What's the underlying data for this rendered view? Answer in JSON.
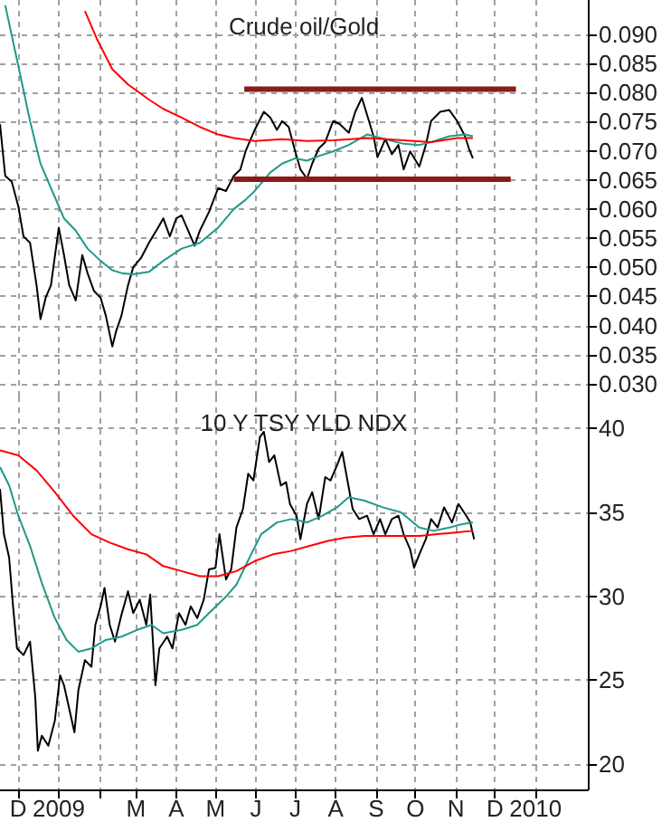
{
  "chart_data": [
    {
      "type": "line",
      "title": "Crude oil/Gold",
      "grid": true,
      "tick_labels": "y",
      "xlim": [
        "2008-11-17",
        "2010-02-10"
      ],
      "xticks": [
        {
          "value": "2008-12-01",
          "label": null
        },
        {
          "value": "2009-01-01",
          "label": null
        },
        {
          "value": "2009-02-01",
          "label": null
        },
        {
          "value": "2009-03-01",
          "label": null
        },
        {
          "value": "2009-04-01",
          "label": null
        },
        {
          "value": "2009-05-01",
          "label": null
        },
        {
          "value": "2009-06-01",
          "label": null
        },
        {
          "value": "2009-07-01",
          "label": null
        },
        {
          "value": "2009-08-01",
          "label": null
        },
        {
          "value": "2009-09-01",
          "label": null
        },
        {
          "value": "2009-10-01",
          "label": null
        },
        {
          "value": "2009-11-01",
          "label": null
        },
        {
          "value": "2009-12-01",
          "label": null
        },
        {
          "value": "2010-01-01",
          "label": null
        }
      ],
      "ylim": [
        0.0278,
        0.0959
      ],
      "yticks": [
        {
          "value": 0.03,
          "label": "0.030"
        },
        {
          "value": 0.035,
          "label": "0.035"
        },
        {
          "value": 0.04,
          "label": "0.040"
        },
        {
          "value": 0.045,
          "label": "0.045"
        },
        {
          "value": 0.05,
          "label": "0.050"
        },
        {
          "value": 0.055,
          "label": "0.055"
        },
        {
          "value": 0.06,
          "label": "0.060"
        },
        {
          "value": 0.065,
          "label": "0.065"
        },
        {
          "value": 0.07,
          "label": "0.070"
        },
        {
          "value": 0.075,
          "label": "0.075"
        },
        {
          "value": 0.08,
          "label": "0.080"
        },
        {
          "value": 0.085,
          "label": "0.085"
        },
        {
          "value": 0.09,
          "label": "0.090"
        }
      ],
      "series": [
        {
          "color": "#000000",
          "x": [
            "2008-11-17",
            "2008-11-21",
            "2008-11-26",
            "2008-12-01",
            "2008-12-05",
            "2008-12-10",
            "2008-12-15",
            "2008-12-18",
            "2008-12-22",
            "2008-12-26",
            "2009-01-01",
            "2009-01-05",
            "2009-01-09",
            "2009-01-14",
            "2009-01-19",
            "2009-01-23",
            "2009-01-28",
            "2009-02-02",
            "2009-02-06",
            "2009-02-11",
            "2009-02-14",
            "2009-02-18",
            "2009-02-23",
            "2009-02-27",
            "2009-03-05",
            "2009-03-11",
            "2009-03-18",
            "2009-03-22",
            "2009-03-27",
            "2009-04-01",
            "2009-04-05",
            "2009-04-10",
            "2009-04-15",
            "2009-04-19",
            "2009-04-26",
            "2009-05-03",
            "2009-05-09",
            "2009-05-15",
            "2009-05-20",
            "2009-05-24",
            "2009-05-31",
            "2009-06-07",
            "2009-06-12",
            "2009-06-17",
            "2009-06-21",
            "2009-06-26",
            "2009-07-01",
            "2009-07-05",
            "2009-07-10",
            "2009-07-14",
            "2009-07-19",
            "2009-07-24",
            "2009-07-30",
            "2009-08-04",
            "2009-08-11",
            "2009-08-16",
            "2009-08-21",
            "2009-08-25",
            "2009-08-30",
            "2009-09-02",
            "2009-09-08",
            "2009-09-13",
            "2009-09-18",
            "2009-09-22",
            "2009-09-27",
            "2009-10-04",
            "2009-10-09",
            "2009-10-13",
            "2009-10-20",
            "2009-10-27",
            "2009-11-02",
            "2009-11-08",
            "2009-11-11",
            "2009-11-14"
          ],
          "values": [
            0.0746,
            0.0657,
            0.0647,
            0.0605,
            0.0553,
            0.0542,
            0.0469,
            0.0411,
            0.0448,
            0.0469,
            0.0568,
            0.0521,
            0.0469,
            0.0443,
            0.0521,
            0.049,
            0.0459,
            0.0448,
            0.0417,
            0.0364,
            0.0391,
            0.0417,
            0.0469,
            0.05,
            0.0516,
            0.0542,
            0.0568,
            0.0584,
            0.0553,
            0.0584,
            0.0589,
            0.0563,
            0.0537,
            0.0563,
            0.0595,
            0.0636,
            0.0631,
            0.0657,
            0.0668,
            0.0699,
            0.0736,
            0.0767,
            0.0757,
            0.0736,
            0.0751,
            0.0741,
            0.0699,
            0.0668,
            0.0652,
            0.0678,
            0.0704,
            0.0715,
            0.0751,
            0.0746,
            0.0731,
            0.0767,
            0.0791,
            0.0762,
            0.0725,
            0.0689,
            0.072,
            0.0694,
            0.071,
            0.0668,
            0.0699,
            0.0673,
            0.071,
            0.0751,
            0.0767,
            0.077,
            0.0751,
            0.0725,
            0.0704,
            0.0687
          ]
        },
        {
          "color": "#1f9a8a",
          "x": [
            "2008-11-21",
            "2008-12-01",
            "2008-12-10",
            "2008-12-18",
            "2008-12-26",
            "2009-01-05",
            "2009-01-14",
            "2009-01-23",
            "2009-02-02",
            "2009-02-11",
            "2009-02-18",
            "2009-02-27",
            "2009-03-11",
            "2009-03-22",
            "2009-04-05",
            "2009-04-19",
            "2009-05-03",
            "2009-05-15",
            "2009-05-24",
            "2009-05-31",
            "2009-06-12",
            "2009-06-21",
            "2009-07-01",
            "2009-07-10",
            "2009-07-19",
            "2009-07-30",
            "2009-08-11",
            "2009-08-25",
            "2009-09-08",
            "2009-09-22",
            "2009-10-04",
            "2009-10-13",
            "2009-10-27",
            "2009-11-08",
            "2009-11-14"
          ],
          "values": [
            0.095,
            0.0846,
            0.0751,
            0.0678,
            0.0636,
            0.0584,
            0.0563,
            0.0532,
            0.0511,
            0.0495,
            0.049,
            0.0488,
            0.0492,
            0.0511,
            0.0532,
            0.0542,
            0.0568,
            0.06,
            0.0616,
            0.0631,
            0.0663,
            0.0678,
            0.0687,
            0.0683,
            0.0691,
            0.0699,
            0.071,
            0.0728,
            0.072,
            0.0712,
            0.071,
            0.0715,
            0.0725,
            0.0728,
            0.0725
          ]
        },
        {
          "color": "#ff0000",
          "x": [
            "2009-01-21",
            "2009-01-30",
            "2009-02-11",
            "2009-02-23",
            "2009-03-11",
            "2009-03-22",
            "2009-04-05",
            "2009-04-19",
            "2009-05-03",
            "2009-05-15",
            "2009-05-31",
            "2009-06-21",
            "2009-07-10",
            "2009-07-30",
            "2009-08-25",
            "2009-09-22",
            "2009-10-13",
            "2009-11-02",
            "2009-11-14"
          ],
          "values": [
            0.094,
            0.0893,
            0.084,
            0.0814,
            0.0788,
            0.0772,
            0.0757,
            0.0741,
            0.0728,
            0.0722,
            0.0717,
            0.072,
            0.0717,
            0.0718,
            0.0722,
            0.0718,
            0.0715,
            0.0722,
            0.0722
          ]
        },
        {
          "color": "#8b1a1a",
          "x": [
            "2009-05-23",
            "2009-12-17"
          ],
          "values": [
            0.0806,
            0.0806
          ]
        },
        {
          "color": "#8b1a1a",
          "x": [
            "2009-05-15",
            "2009-12-13"
          ],
          "values": [
            0.0651,
            0.0651
          ]
        }
      ]
    },
    {
      "type": "line",
      "title": "10 Y TSY YLD NDX",
      "grid": true,
      "xlim": [
        "2008-11-17",
        "2010-02-10"
      ],
      "xticks": [
        {
          "value": "2008-12-01",
          "label": "D"
        },
        {
          "value": "2009-01-01",
          "label": "2009"
        },
        {
          "value": "2009-02-01",
          "label": null
        },
        {
          "value": "2009-03-01",
          "label": "M"
        },
        {
          "value": "2009-04-01",
          "label": "A"
        },
        {
          "value": "2009-05-01",
          "label": "M"
        },
        {
          "value": "2009-06-01",
          "label": "J"
        },
        {
          "value": "2009-07-01",
          "label": "J"
        },
        {
          "value": "2009-08-01",
          "label": "A"
        },
        {
          "value": "2009-09-01",
          "label": "S"
        },
        {
          "value": "2009-10-01",
          "label": "O"
        },
        {
          "value": "2009-11-01",
          "label": "N"
        },
        {
          "value": "2009-12-01",
          "label": "D"
        },
        {
          "value": "2010-01-01",
          "label": "2010"
        }
      ],
      "ylim": [
        18.5,
        41.9
      ],
      "yticks": [
        20,
        25,
        30,
        35,
        40
      ],
      "series": [
        {
          "color": "#000000",
          "x": [
            "2008-11-17",
            "2008-11-20",
            "2008-11-24",
            "2008-11-27",
            "2008-11-30",
            "2008-12-05",
            "2008-12-10",
            "2008-12-14",
            "2008-12-16",
            "2008-12-19",
            "2008-12-24",
            "2008-12-29",
            "2009-01-02",
            "2009-01-05",
            "2009-01-09",
            "2009-01-13",
            "2009-01-16",
            "2009-01-21",
            "2009-01-26",
            "2009-01-29",
            "2009-02-02",
            "2009-02-05",
            "2009-02-09",
            "2009-02-13",
            "2009-02-18",
            "2009-02-23",
            "2009-02-27",
            "2009-03-04",
            "2009-03-09",
            "2009-03-12",
            "2009-03-16",
            "2009-03-19",
            "2009-03-25",
            "2009-03-29",
            "2009-04-03",
            "2009-04-08",
            "2009-04-12",
            "2009-04-17",
            "2009-04-22",
            "2009-04-26",
            "2009-05-01",
            "2009-05-04",
            "2009-05-09",
            "2009-05-13",
            "2009-05-17",
            "2009-05-22",
            "2009-05-26",
            "2009-05-30",
            "2009-06-04",
            "2009-06-07",
            "2009-06-11",
            "2009-06-15",
            "2009-06-20",
            "2009-06-24",
            "2009-06-27",
            "2009-07-02",
            "2009-07-05",
            "2009-07-10",
            "2009-07-14",
            "2009-07-19",
            "2009-07-24",
            "2009-07-28",
            "2009-08-02",
            "2009-08-06",
            "2009-08-10",
            "2009-08-14",
            "2009-08-19",
            "2009-08-25",
            "2009-08-30",
            "2009-09-04",
            "2009-09-08",
            "2009-09-13",
            "2009-09-18",
            "2009-09-22",
            "2009-09-27",
            "2009-09-30",
            "2009-10-04",
            "2009-10-09",
            "2009-10-13",
            "2009-10-18",
            "2009-10-23",
            "2009-10-29",
            "2009-11-03",
            "2009-11-09",
            "2009-11-12",
            "2009-11-15"
          ],
          "values": [
            36.4,
            33.7,
            32.3,
            29.4,
            26.9,
            26.5,
            27.3,
            24.0,
            20.8,
            21.7,
            21.1,
            22.6,
            25.3,
            24.7,
            23.3,
            21.9,
            24.4,
            26.2,
            25.8,
            28.3,
            29.4,
            30.5,
            28.3,
            27.3,
            28.9,
            30.3,
            29.0,
            29.8,
            28.3,
            30.1,
            24.7,
            26.9,
            27.6,
            26.9,
            29.0,
            28.3,
            29.4,
            28.7,
            29.8,
            31.6,
            31.7,
            33.7,
            31.0,
            31.6,
            34.1,
            35.2,
            37.3,
            36.9,
            39.5,
            39.8,
            38.0,
            38.4,
            36.6,
            36.8,
            35.5,
            34.8,
            33.4,
            35.5,
            36.2,
            34.6,
            37.1,
            36.9,
            37.8,
            38.6,
            36.9,
            35.2,
            34.6,
            34.8,
            33.7,
            34.6,
            33.7,
            34.6,
            34.8,
            33.7,
            32.8,
            31.7,
            32.5,
            33.4,
            34.6,
            34.1,
            35.3,
            34.4,
            35.5,
            34.8,
            34.4,
            33.4
          ]
        },
        {
          "color": "#1f9a8a",
          "x": [
            "2008-11-17",
            "2008-11-24",
            "2008-12-01",
            "2008-12-10",
            "2008-12-19",
            "2008-12-29",
            "2009-01-07",
            "2009-01-16",
            "2009-01-26",
            "2009-02-06",
            "2009-02-18",
            "2009-03-02",
            "2009-03-13",
            "2009-03-22",
            "2009-04-05",
            "2009-04-17",
            "2009-04-26",
            "2009-05-08",
            "2009-05-17",
            "2009-05-27",
            "2009-06-05",
            "2009-06-17",
            "2009-06-28",
            "2009-07-10",
            "2009-07-22",
            "2009-08-02",
            "2009-08-11",
            "2009-08-23",
            "2009-09-06",
            "2009-09-20",
            "2009-10-04",
            "2009-10-15",
            "2009-10-27",
            "2009-11-06",
            "2009-11-14"
          ],
          "values": [
            37.7,
            36.6,
            34.8,
            33.0,
            30.8,
            28.7,
            27.4,
            26.7,
            26.9,
            27.4,
            27.6,
            28.0,
            28.3,
            27.8,
            28.0,
            28.3,
            29.0,
            29.9,
            30.7,
            32.3,
            33.7,
            34.4,
            34.6,
            34.4,
            34.8,
            35.3,
            35.9,
            35.7,
            35.3,
            35.0,
            34.1,
            33.9,
            34.1,
            34.3,
            34.4
          ]
        },
        {
          "color": "#ff0000",
          "x": [
            "2008-11-17",
            "2008-12-01",
            "2008-12-15",
            "2008-12-29",
            "2009-01-12",
            "2009-01-26",
            "2009-02-09",
            "2009-02-23",
            "2009-03-09",
            "2009-03-22",
            "2009-04-05",
            "2009-04-19",
            "2009-05-03",
            "2009-05-17",
            "2009-05-31",
            "2009-06-14",
            "2009-06-28",
            "2009-07-12",
            "2009-07-26",
            "2009-08-09",
            "2009-08-23",
            "2009-09-06",
            "2009-09-20",
            "2009-10-04",
            "2009-10-18",
            "2009-11-01",
            "2009-11-14"
          ],
          "values": [
            38.7,
            38.4,
            37.5,
            36.2,
            34.8,
            33.7,
            33.2,
            32.8,
            32.5,
            31.8,
            31.5,
            31.2,
            31.2,
            31.5,
            32.1,
            32.5,
            32.7,
            33.0,
            33.3,
            33.5,
            33.6,
            33.6,
            33.6,
            33.6,
            33.7,
            33.8,
            33.9
          ]
        }
      ]
    }
  ]
}
